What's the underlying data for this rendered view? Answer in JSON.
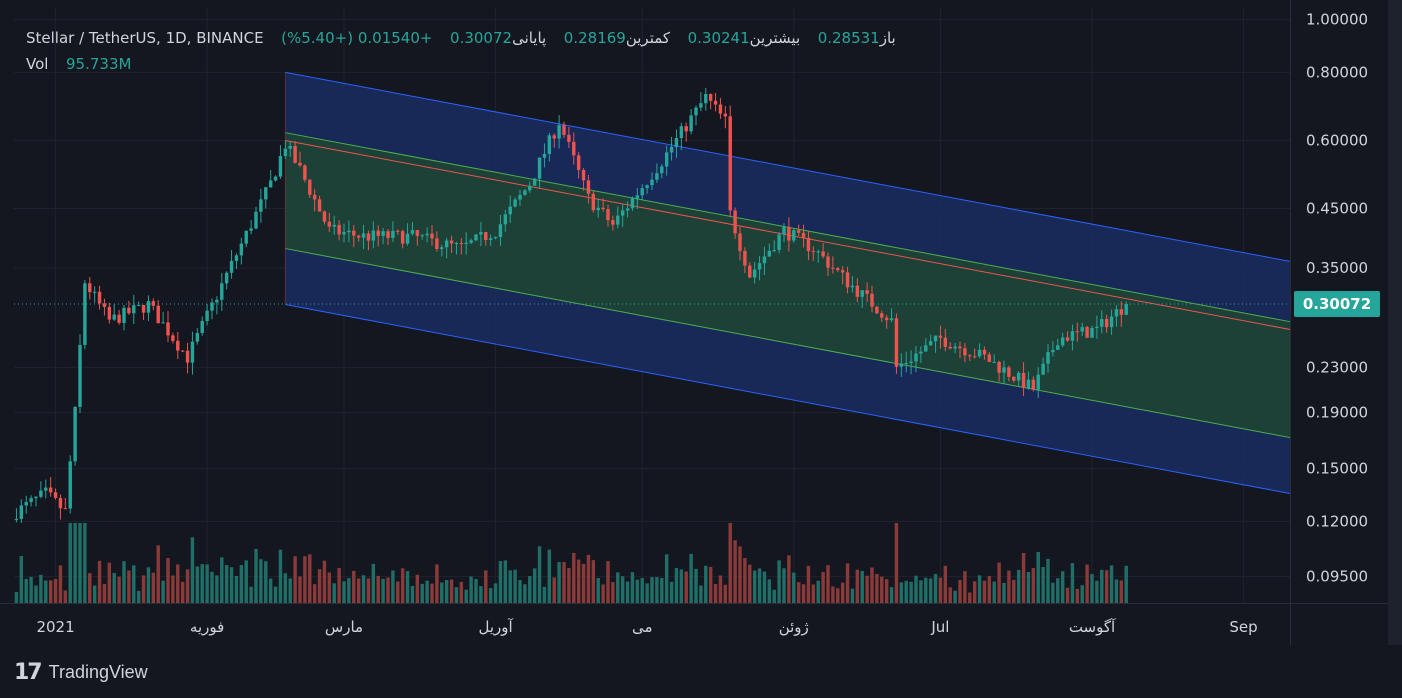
{
  "header": {
    "symbol": "Stellar / TetherUS, 1D, BINANCE",
    "open_label": "باز",
    "open_value": "0.28531",
    "high_label": "بیشترین",
    "high_value": "0.30241",
    "low_label": "کمترین",
    "low_value": "0.28169",
    "close_label": "پایانی",
    "close_value": "0.30072",
    "change_value": "+0.01540 (+5.40%)",
    "vol_label": "Vol",
    "vol_value": "95.733M"
  },
  "price_tag": "0.30072",
  "logo": {
    "icon": "tradingview-logo-icon",
    "text": "TradingView"
  },
  "colors": {
    "up": "#26a69a",
    "down": "#ef5350",
    "vol_up": "#1f6f68",
    "vol_down": "#8a3a38",
    "channel_outer": "#2962ff",
    "channel_inner": "#4caf50",
    "median": "#ef5350",
    "outer_fill": "#1a2f6b",
    "inner_fill": "#1f4530",
    "background": "#14171f"
  },
  "chart_data": {
    "type": "candlestick",
    "symbol": "XLMUSDT",
    "interval": "1D",
    "scale": "log",
    "ylim": [
      0.085,
      1.05
    ],
    "y_ticks": [
      "1.00000",
      "0.80000",
      "0.60000",
      "0.45000",
      "0.35000",
      "0.23000",
      "0.19000",
      "0.15000",
      "0.12000",
      "0.09500"
    ],
    "x_ticks": [
      {
        "label": "2021",
        "date": "2021-01-01"
      },
      {
        "label": "فوریه",
        "date": "2021-02-01"
      },
      {
        "label": "مارس",
        "date": "2021-03-01"
      },
      {
        "label": "آوریل",
        "date": "2021-04-01"
      },
      {
        "label": "می",
        "date": "2021-05-01"
      },
      {
        "label": "ژوئن",
        "date": "2021-06-01"
      },
      {
        "label": "Jul",
        "date": "2021-07-01"
      },
      {
        "label": "آگوست",
        "date": "2021-08-01"
      },
      {
        "label": "Sep",
        "date": "2021-09-01"
      }
    ],
    "x_range": [
      "2020-12-24",
      "2021-09-11"
    ],
    "last_close": 0.30072,
    "price_keypoints": [
      {
        "date": "2020-12-24",
        "close": 0.125
      },
      {
        "date": "2020-12-30",
        "close": 0.135
      },
      {
        "date": "2021-01-03",
        "close": 0.125
      },
      {
        "date": "2021-01-05",
        "close": 0.19
      },
      {
        "date": "2021-01-07",
        "close": 0.33
      },
      {
        "date": "2021-01-12",
        "close": 0.28
      },
      {
        "date": "2021-01-20",
        "close": 0.3
      },
      {
        "date": "2021-01-28",
        "close": 0.24
      },
      {
        "date": "2021-02-05",
        "close": 0.34
      },
      {
        "date": "2021-02-14",
        "close": 0.5
      },
      {
        "date": "2021-02-17",
        "close": 0.59
      },
      {
        "date": "2021-02-20",
        "close": 0.53
      },
      {
        "date": "2021-02-26",
        "close": 0.41
      },
      {
        "date": "2021-03-05",
        "close": 0.4
      },
      {
        "date": "2021-03-15",
        "close": 0.4
      },
      {
        "date": "2021-03-25",
        "close": 0.38
      },
      {
        "date": "2021-04-01",
        "close": 0.41
      },
      {
        "date": "2021-04-08",
        "close": 0.5
      },
      {
        "date": "2021-04-14",
        "close": 0.65
      },
      {
        "date": "2021-04-20",
        "close": 0.47
      },
      {
        "date": "2021-04-25",
        "close": 0.42
      },
      {
        "date": "2021-05-05",
        "close": 0.55
      },
      {
        "date": "2021-05-14",
        "close": 0.72
      },
      {
        "date": "2021-05-18",
        "close": 0.65
      },
      {
        "date": "2021-05-19",
        "close": 0.44
      },
      {
        "date": "2021-05-23",
        "close": 0.34
      },
      {
        "date": "2021-05-30",
        "close": 0.41
      },
      {
        "date": "2021-06-05",
        "close": 0.38
      },
      {
        "date": "2021-06-12",
        "close": 0.33
      },
      {
        "date": "2021-06-21",
        "close": 0.28
      },
      {
        "date": "2021-06-22",
        "close": 0.23
      },
      {
        "date": "2021-07-01",
        "close": 0.26
      },
      {
        "date": "2021-07-10",
        "close": 0.24
      },
      {
        "date": "2021-07-20",
        "close": 0.21
      },
      {
        "date": "2021-07-25",
        "close": 0.26
      },
      {
        "date": "2021-08-02",
        "close": 0.27
      },
      {
        "date": "2021-08-08",
        "close": 0.30072
      }
    ],
    "volume_last": "95.733M",
    "drawings": [
      {
        "type": "regression_trend_channel",
        "start": {
          "date": "2021-02-17",
          "price": 0.6
        },
        "end": {
          "date": "2021-09-11",
          "price": 0.27
        },
        "outer_band_start": [
          0.8,
          0.3
        ],
        "inner_band_start": [
          0.62,
          0.38
        ]
      }
    ]
  }
}
